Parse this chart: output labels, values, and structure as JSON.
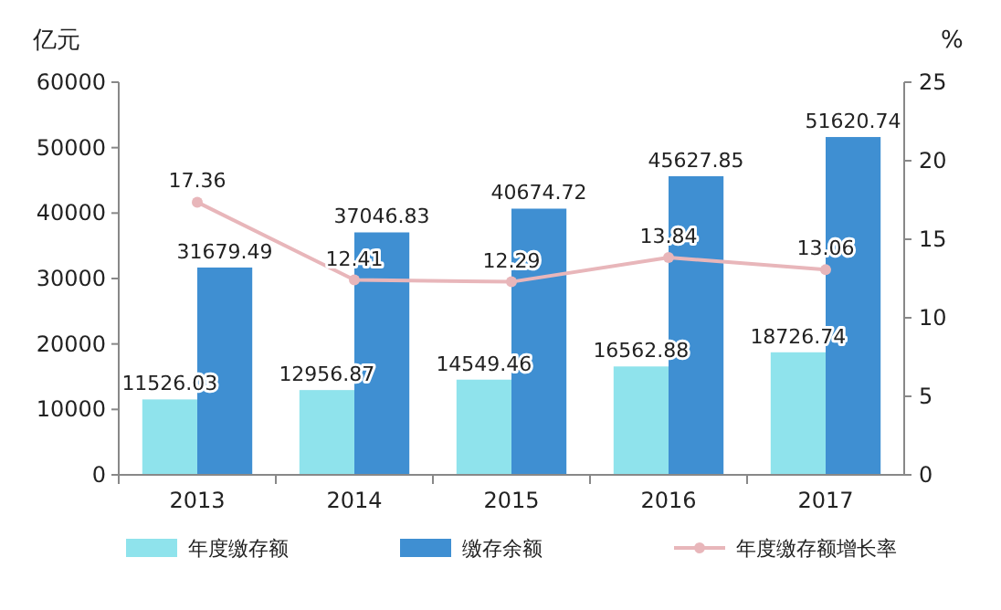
{
  "chart_data": {
    "type": "bar",
    "ylabel": "亿元",
    "y2label": "%",
    "categories": [
      "2013",
      "2014",
      "2015",
      "2016",
      "2017"
    ],
    "series": [
      {
        "name": "年度缴存额",
        "color": "#8fe3ec",
        "values": [
          11526.03,
          12956.87,
          14549.46,
          16562.88,
          18726.74
        ]
      },
      {
        "name": "缴存余额",
        "color": "#3f8fd2",
        "values": [
          31679.49,
          37046.83,
          40674.72,
          45627.85,
          51620.74
        ]
      },
      {
        "name": "年度缴存额增长率",
        "type": "line",
        "axis": "y2",
        "color": "#e8b6ba",
        "marker": "circle",
        "values": [
          17.36,
          12.41,
          12.29,
          13.84,
          13.06
        ]
      }
    ],
    "ylim": [
      0,
      60000
    ],
    "yticks": [
      0,
      10000,
      20000,
      30000,
      40000,
      50000,
      60000
    ],
    "y2lim": [
      0,
      25
    ],
    "y2ticks": [
      0,
      5,
      10,
      15,
      20,
      25
    ],
    "data_labels": true,
    "legend": "bottom",
    "grid": false
  }
}
